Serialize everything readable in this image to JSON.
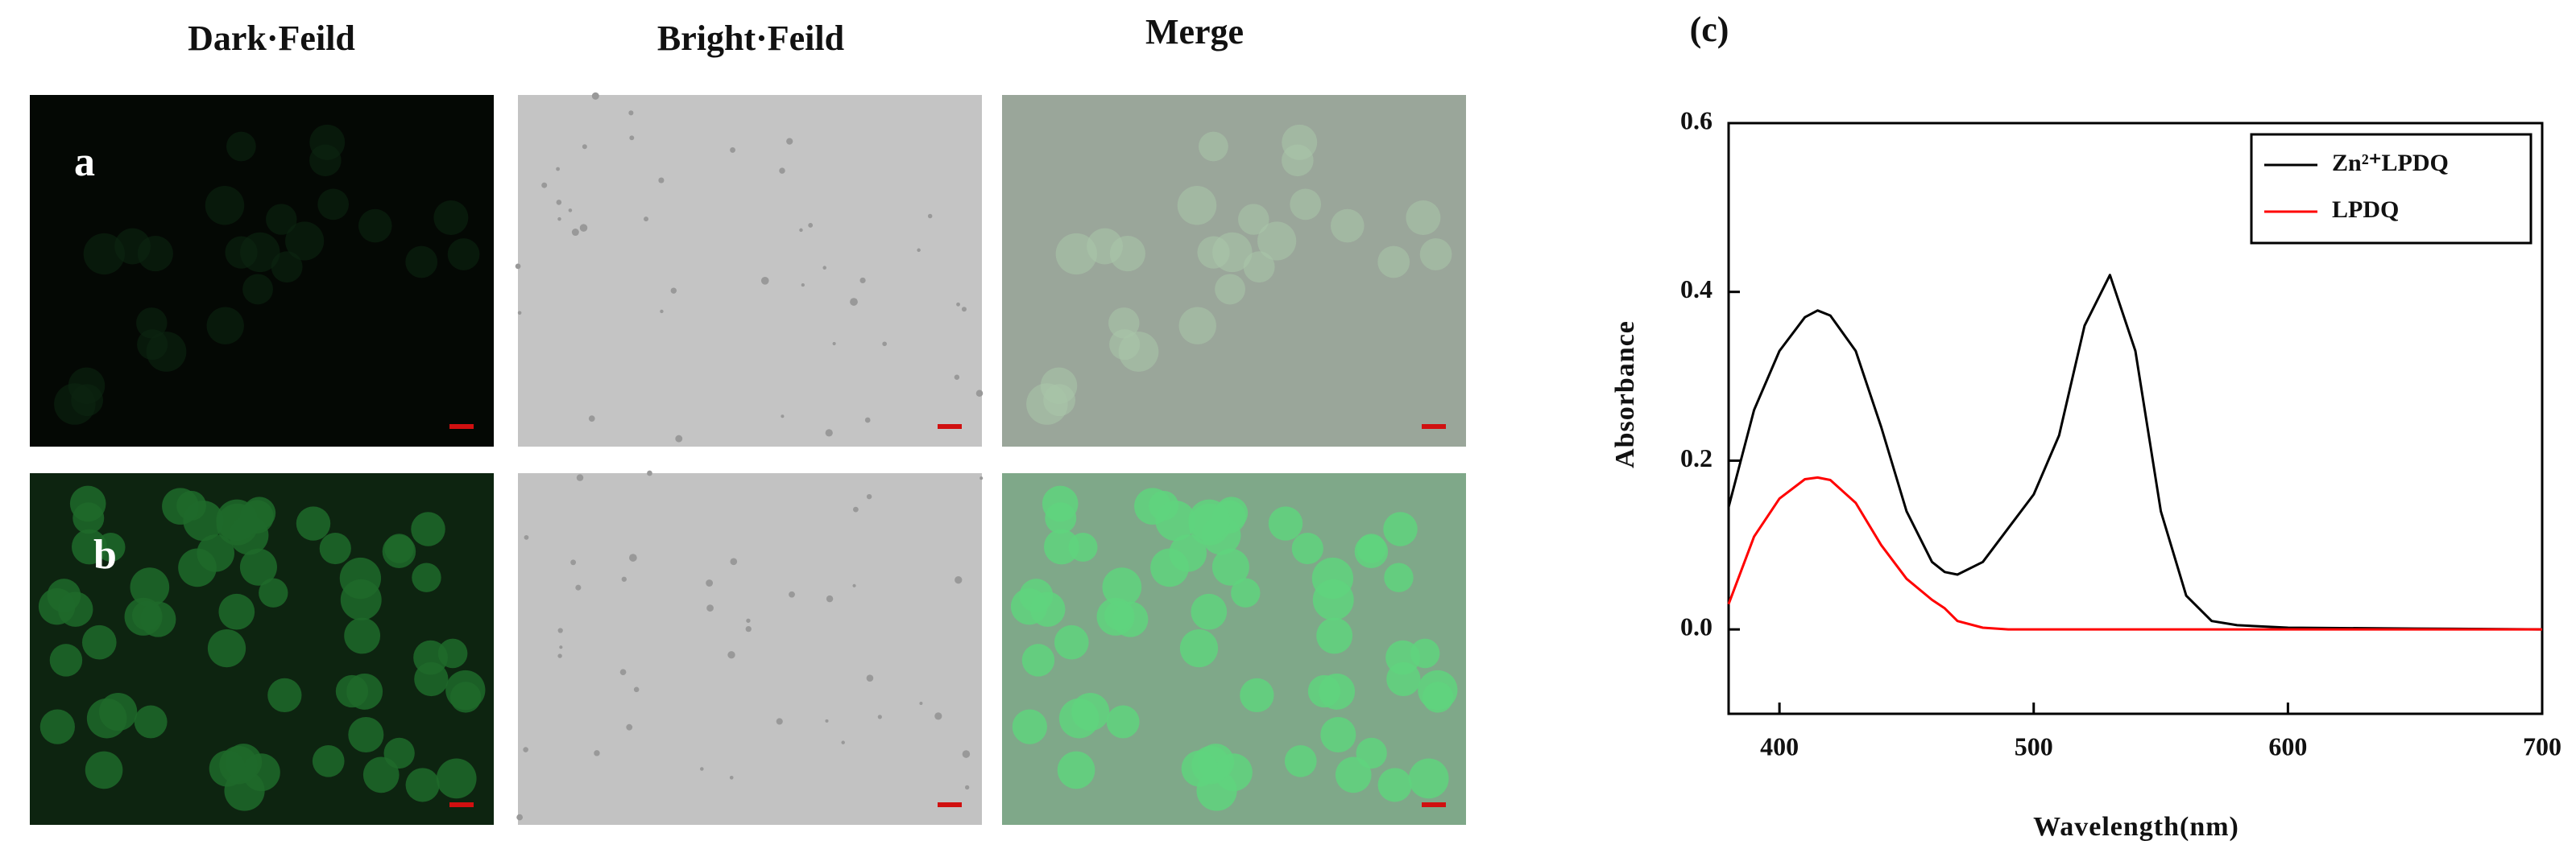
{
  "panels": {
    "columns": [
      "Dark·Feild",
      "Bright·Feild",
      "Merge"
    ],
    "rows": [
      "a",
      "b"
    ]
  },
  "chart_data": {
    "type": "line",
    "label": "(c)",
    "x_label": "Wavelength(nm)",
    "y_label": "Absorbance",
    "x": [
      380,
      390,
      400,
      410,
      415,
      420,
      430,
      440,
      450,
      460,
      465,
      470,
      480,
      490,
      500,
      510,
      520,
      530,
      540,
      550,
      560,
      570,
      580,
      600,
      650,
      700
    ],
    "series": [
      {
        "name": "Zn²⁺LPDQ",
        "color": "#000000",
        "values": [
          0.145,
          0.26,
          0.33,
          0.37,
          0.378,
          0.372,
          0.33,
          0.24,
          0.14,
          0.08,
          0.068,
          0.065,
          0.08,
          0.12,
          0.16,
          0.23,
          0.36,
          0.42,
          0.33,
          0.14,
          0.04,
          0.01,
          0.005,
          0.002,
          0.001,
          0.0
        ]
      },
      {
        "name": "LPDQ",
        "color": "#ff0000",
        "values": [
          0.03,
          0.11,
          0.155,
          0.178,
          0.18,
          0.177,
          0.15,
          0.1,
          0.06,
          0.035,
          0.025,
          0.01,
          0.002,
          0.0,
          0.0,
          0.0,
          0.0,
          0.0,
          0.0,
          0.0,
          0.0,
          0.0,
          0.0,
          0.0,
          0.0,
          0.0
        ]
      }
    ],
    "xlim": [
      380,
      700
    ],
    "ylim": [
      -0.1,
      0.6
    ],
    "xticks": [
      400,
      500,
      600,
      700
    ],
    "yticks": [
      {
        "value": 0,
        "label": "0.0"
      },
      0.2,
      0.4,
      0.6
    ],
    "legend": "upper right"
  }
}
